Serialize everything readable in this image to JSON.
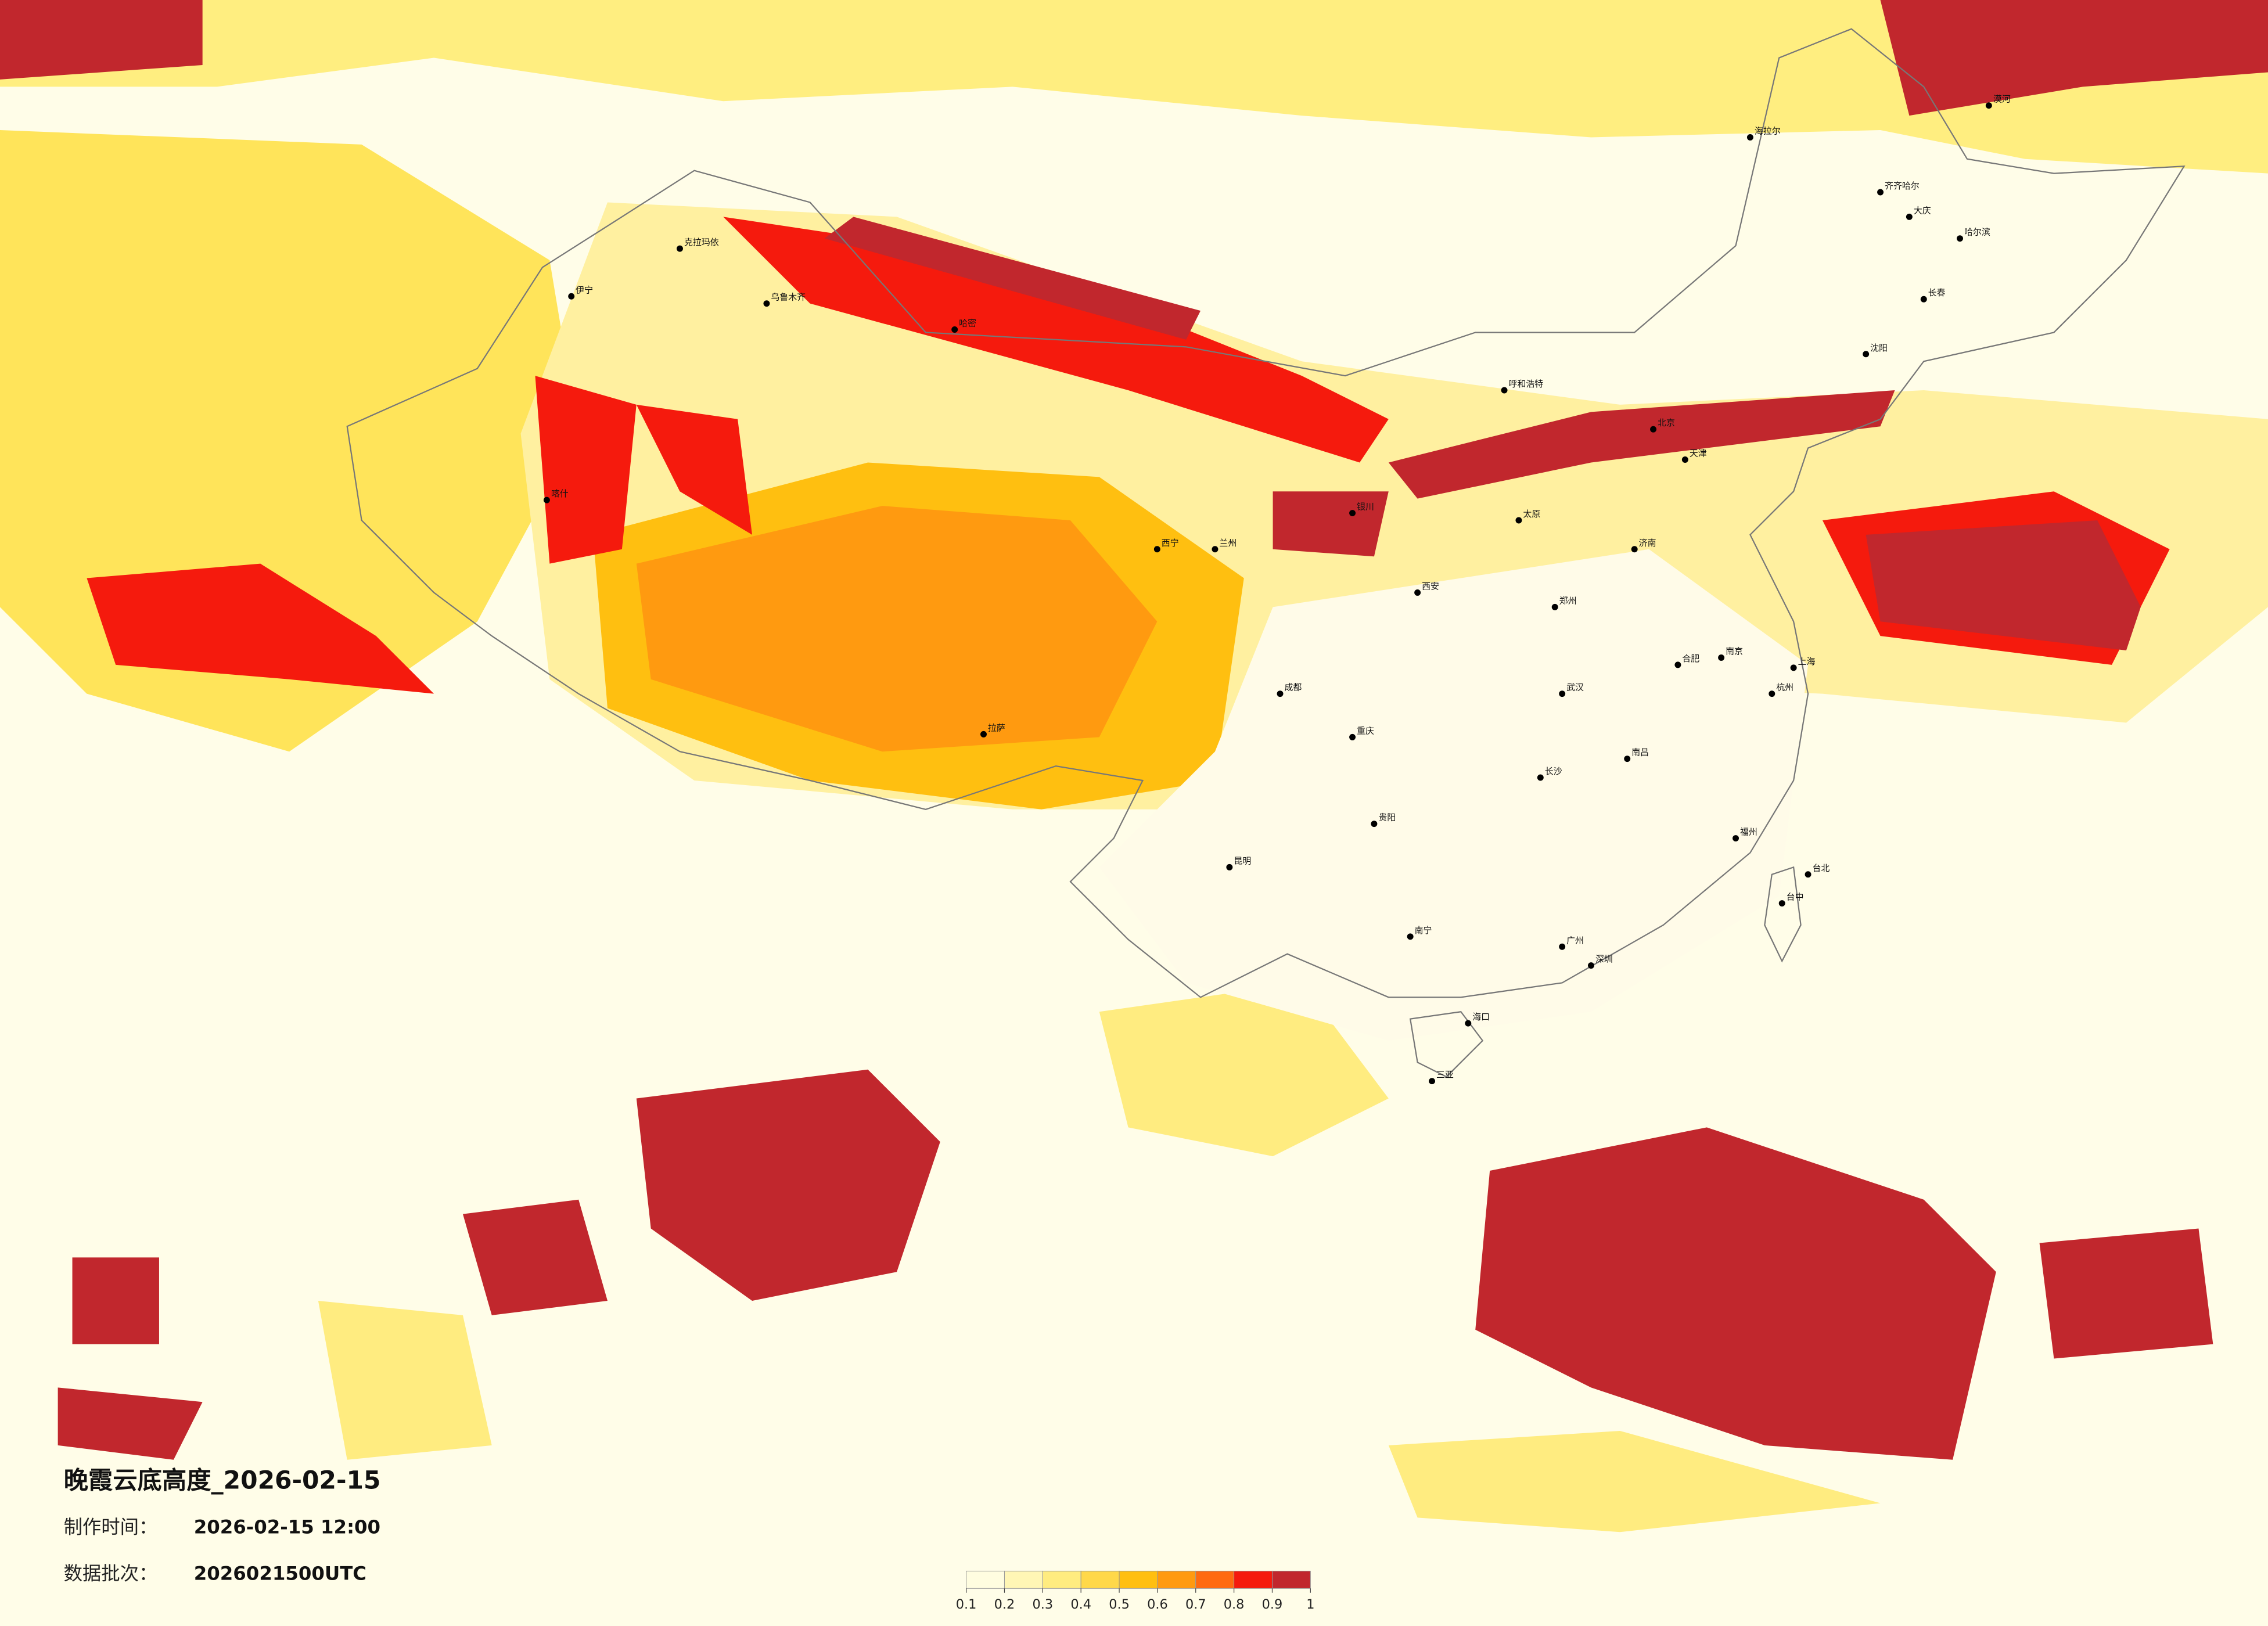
{
  "header": {
    "title": "晚霞云底高度_2026-02-15",
    "made_label": "制作时间：",
    "made_time": "2026-02-15 12:00",
    "batch_label": "数据批次：",
    "batch": "2026021500UTC"
  },
  "colorbar": {
    "ticks": [
      0.1,
      0.2,
      0.3,
      0.4,
      0.5,
      0.6,
      0.7,
      0.8,
      0.9,
      1
    ],
    "colors": [
      "#fffde0",
      "#fff6b5",
      "#ffec80",
      "#ffd84a",
      "#ffbf10",
      "#ff9a10",
      "#ff6a10",
      "#f51a0d",
      "#c1272d"
    ]
  },
  "cities": [
    {
      "name": "北京"
    },
    {
      "name": "天津"
    },
    {
      "name": "上海"
    },
    {
      "name": "广州"
    },
    {
      "name": "深圳"
    },
    {
      "name": "重庆"
    },
    {
      "name": "成都"
    },
    {
      "name": "武汉"
    },
    {
      "name": "西安"
    },
    {
      "name": "兰州"
    },
    {
      "name": "乌鲁木齐"
    },
    {
      "name": "拉萨"
    },
    {
      "name": "哈尔滨"
    },
    {
      "name": "长春"
    },
    {
      "name": "沈阳"
    },
    {
      "name": "昆明"
    },
    {
      "name": "南宁"
    },
    {
      "name": "海口"
    },
    {
      "name": "三亚"
    },
    {
      "name": "贵阳"
    },
    {
      "name": "长沙"
    },
    {
      "name": "南昌"
    },
    {
      "name": "福州"
    },
    {
      "name": "台北"
    },
    {
      "name": "杭州"
    },
    {
      "name": "南京"
    },
    {
      "name": "合肥"
    },
    {
      "name": "郑州"
    },
    {
      "name": "济南"
    },
    {
      "name": "太原"
    },
    {
      "name": "呼和浩特"
    },
    {
      "name": "银川"
    },
    {
      "name": "西宁"
    },
    {
      "name": "喀什"
    },
    {
      "name": "伊宁"
    },
    {
      "name": "克拉玛依"
    },
    {
      "name": "哈密"
    },
    {
      "name": "大庆"
    },
    {
      "name": "齐齐哈尔"
    },
    {
      "name": "漠河"
    },
    {
      "name": "海拉尔"
    },
    {
      "name": "台中"
    }
  ]
}
